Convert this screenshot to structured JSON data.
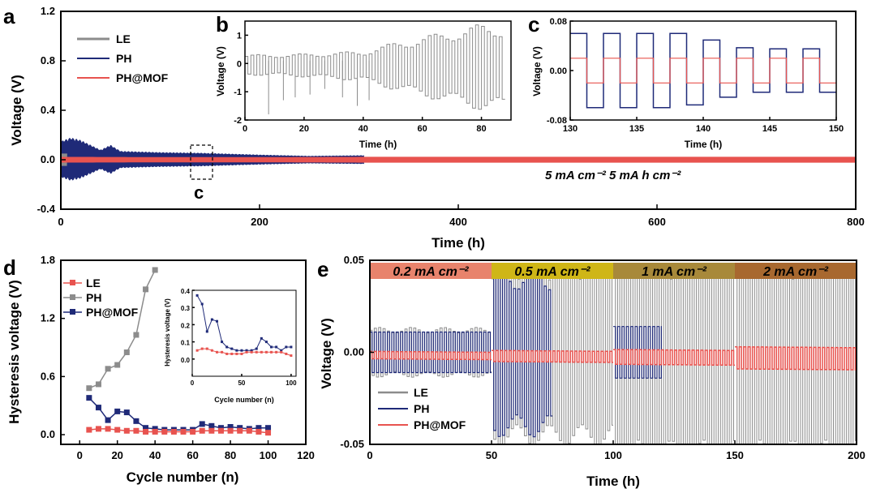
{
  "colors": {
    "le": "#8c8c8c",
    "ph": "#1f2a78",
    "phmof": "#e8534f"
  },
  "chart_data": [
    {
      "id": "a",
      "type": "line",
      "panel_label": "a",
      "xlabel": "Time (h)",
      "ylabel": "Voltage (V)",
      "xlim": [
        0,
        800
      ],
      "ylim": [
        -0.4,
        1.2
      ],
      "xticks": [
        "0",
        "200",
        "400",
        "600",
        "800"
      ],
      "yticks": [
        "-0.4",
        "0.0",
        "0.4",
        "0.8",
        "1.2"
      ],
      "legend": [
        "LE",
        "PH",
        "PH@MOF"
      ],
      "annotation": "5 mA cm⁻²   5 mA h cm⁻²",
      "zoom_box_label": "c",
      "series": [
        {
          "name": "LE",
          "x": [
            0,
            2,
            4,
            6
          ],
          "y_amplitude": [
            0.05,
            0.05,
            0.05,
            0.05
          ]
        },
        {
          "name": "PH",
          "x": [
            0,
            10,
            20,
            40,
            50,
            60,
            100,
            140,
            200,
            250,
            305
          ],
          "y_amplitude": [
            0.15,
            0.18,
            0.16,
            0.08,
            0.12,
            0.07,
            0.06,
            0.055,
            0.04,
            0.03,
            0.035
          ]
        },
        {
          "name": "PH@MOF",
          "x": [
            0,
            100,
            200,
            300,
            400,
            500,
            600,
            700,
            800
          ],
          "y_amplitude": [
            0.02,
            0.018,
            0.018,
            0.02,
            0.02,
            0.02,
            0.02,
            0.02,
            0.02
          ]
        }
      ]
    },
    {
      "id": "b",
      "type": "line",
      "panel_label": "b",
      "xlabel": "Time (h)",
      "ylabel": "Voltage (V)",
      "xlim": [
        0,
        90
      ],
      "ylim": [
        -2,
        1.5
      ],
      "xticks": [
        "0",
        "20",
        "40",
        "60",
        "80"
      ],
      "yticks": [
        "-2",
        "-1",
        "0",
        "1"
      ],
      "series": [
        {
          "name": "LE",
          "x": [
            0,
            20,
            40,
            50,
            60,
            70,
            80,
            88
          ],
          "y_amplitude": [
            0.3,
            0.35,
            0.45,
            0.7,
            0.9,
            1.1,
            1.3,
            1.3
          ]
        }
      ]
    },
    {
      "id": "c",
      "type": "line",
      "panel_label": "c",
      "xlabel": "Time (h)",
      "ylabel": "Voltage (V)",
      "xlim": [
        130,
        150
      ],
      "ylim": [
        -0.08,
        0.08
      ],
      "xticks": [
        "130",
        "135",
        "140",
        "145",
        "150"
      ],
      "yticks": [
        "-0.08",
        "0.00",
        "0.08"
      ],
      "series": [
        {
          "name": "PH",
          "amplitude_start": 0.06,
          "amplitude_end": 0.035
        },
        {
          "name": "PH@MOF",
          "amplitude": 0.02
        }
      ]
    },
    {
      "id": "d",
      "type": "scatter",
      "panel_label": "d",
      "xlabel": "Cycle number (n)",
      "ylabel": "Hysteresis voltage (V)",
      "xlim": [
        -10,
        120
      ],
      "ylim": [
        -0.1,
        1.8
      ],
      "xticks": [
        "0",
        "20",
        "40",
        "60",
        "80",
        "100",
        "120"
      ],
      "yticks": [
        "0.0",
        "0.6",
        "1.2",
        "1.8"
      ],
      "legend": [
        "LE",
        "PH",
        "PH@MOF"
      ],
      "series": [
        {
          "name": "PH",
          "x": [
            5,
            10,
            15,
            20,
            25,
            30,
            35,
            40
          ],
          "y": [
            0.48,
            0.52,
            0.68,
            0.72,
            0.85,
            1.03,
            1.5,
            1.7
          ]
        },
        {
          "name": "PH@MOF",
          "x": [
            5,
            10,
            15,
            20,
            25,
            30,
            35,
            40,
            45,
            50,
            55,
            60,
            65,
            70,
            75,
            80,
            85,
            90,
            95,
            100
          ],
          "y": [
            0.38,
            0.28,
            0.15,
            0.24,
            0.23,
            0.14,
            0.07,
            0.06,
            0.05,
            0.05,
            0.05,
            0.05,
            0.11,
            0.09,
            0.07,
            0.08,
            0.07,
            0.06,
            0.07,
            0.07
          ]
        },
        {
          "name": "LE",
          "x": [
            5,
            10,
            15,
            20,
            25,
            30,
            35,
            40,
            45,
            50,
            55,
            60,
            65,
            70,
            75,
            80,
            85,
            90,
            95,
            100
          ],
          "y": [
            0.05,
            0.06,
            0.06,
            0.05,
            0.04,
            0.04,
            0.03,
            0.03,
            0.03,
            0.03,
            0.03,
            0.03,
            0.04,
            0.04,
            0.04,
            0.04,
            0.04,
            0.04,
            0.03,
            0.02
          ]
        }
      ]
    },
    {
      "id": "d_inset",
      "type": "line",
      "xlabel": "Cycle number (n)",
      "ylabel": "Hysteresis voltage (V)",
      "xlim": [
        0,
        105
      ],
      "ylim": [
        -0.1,
        0.4
      ],
      "xticks": [
        "0",
        "50",
        "100"
      ],
      "yticks": [
        "0.0",
        "0.1",
        "0.2",
        "0.3",
        "0.4"
      ],
      "series": [
        {
          "name": "PH@MOF",
          "x": [
            5,
            10,
            15,
            20,
            25,
            30,
            35,
            40,
            45,
            50,
            55,
            60,
            65,
            70,
            75,
            80,
            85,
            90,
            95,
            100
          ],
          "y": [
            0.37,
            0.32,
            0.16,
            0.23,
            0.22,
            0.1,
            0.07,
            0.06,
            0.05,
            0.05,
            0.05,
            0.05,
            0.06,
            0.12,
            0.1,
            0.07,
            0.07,
            0.05,
            0.07,
            0.07
          ]
        },
        {
          "name": "LE",
          "x": [
            5,
            10,
            15,
            20,
            25,
            30,
            35,
            40,
            45,
            50,
            55,
            60,
            65,
            70,
            75,
            80,
            85,
            90,
            95,
            100
          ],
          "y": [
            0.05,
            0.06,
            0.06,
            0.05,
            0.04,
            0.04,
            0.03,
            0.03,
            0.03,
            0.03,
            0.04,
            0.04,
            0.04,
            0.04,
            0.04,
            0.04,
            0.04,
            0.04,
            0.03,
            0.02
          ]
        }
      ]
    },
    {
      "id": "e",
      "type": "line",
      "panel_label": "e",
      "xlabel": "Time (h)",
      "ylabel": "Voltage (V)",
      "xlim": [
        0,
        200
      ],
      "ylim": [
        -0.05,
        0.05
      ],
      "xticks": [
        "0",
        "50",
        "100",
        "150",
        "200"
      ],
      "yticks": [
        "-0.05",
        "0.00",
        "0.05"
      ],
      "legend": [
        "LE",
        "PH",
        "PH@MOF"
      ],
      "rate_bands": [
        {
          "label": "0.2 mA cm⁻²",
          "x0": 0,
          "x1": 50,
          "color": "#e8836c"
        },
        {
          "label": "0.5 mA cm⁻²",
          "x0": 50,
          "x1": 100,
          "color": "#cfb617"
        },
        {
          "label": "1 mA cm⁻²",
          "x0": 100,
          "x1": 150,
          "color": "#a8893a"
        },
        {
          "label": "2 mA cm⁻²",
          "x0": 150,
          "x1": 200,
          "color": "#a8682f"
        }
      ],
      "series": [
        {
          "name": "LE",
          "segments": [
            [
              0,
              50,
              0.012
            ],
            [
              50,
              100,
              0.045
            ],
            [
              100,
              150,
              0.05
            ],
            [
              150,
              200,
              0.05
            ]
          ]
        },
        {
          "name": "PH",
          "segments": [
            [
              0,
              50,
              0.011
            ],
            [
              50,
              75,
              0.04
            ],
            [
              100,
              120,
              0.014
            ]
          ]
        },
        {
          "name": "PH@MOF",
          "segments": [
            [
              0,
              50,
              0.002
            ],
            [
              50,
              100,
              0.003
            ],
            [
              100,
              150,
              0.004
            ],
            [
              150,
              200,
              0.006
            ]
          ]
        }
      ]
    }
  ]
}
